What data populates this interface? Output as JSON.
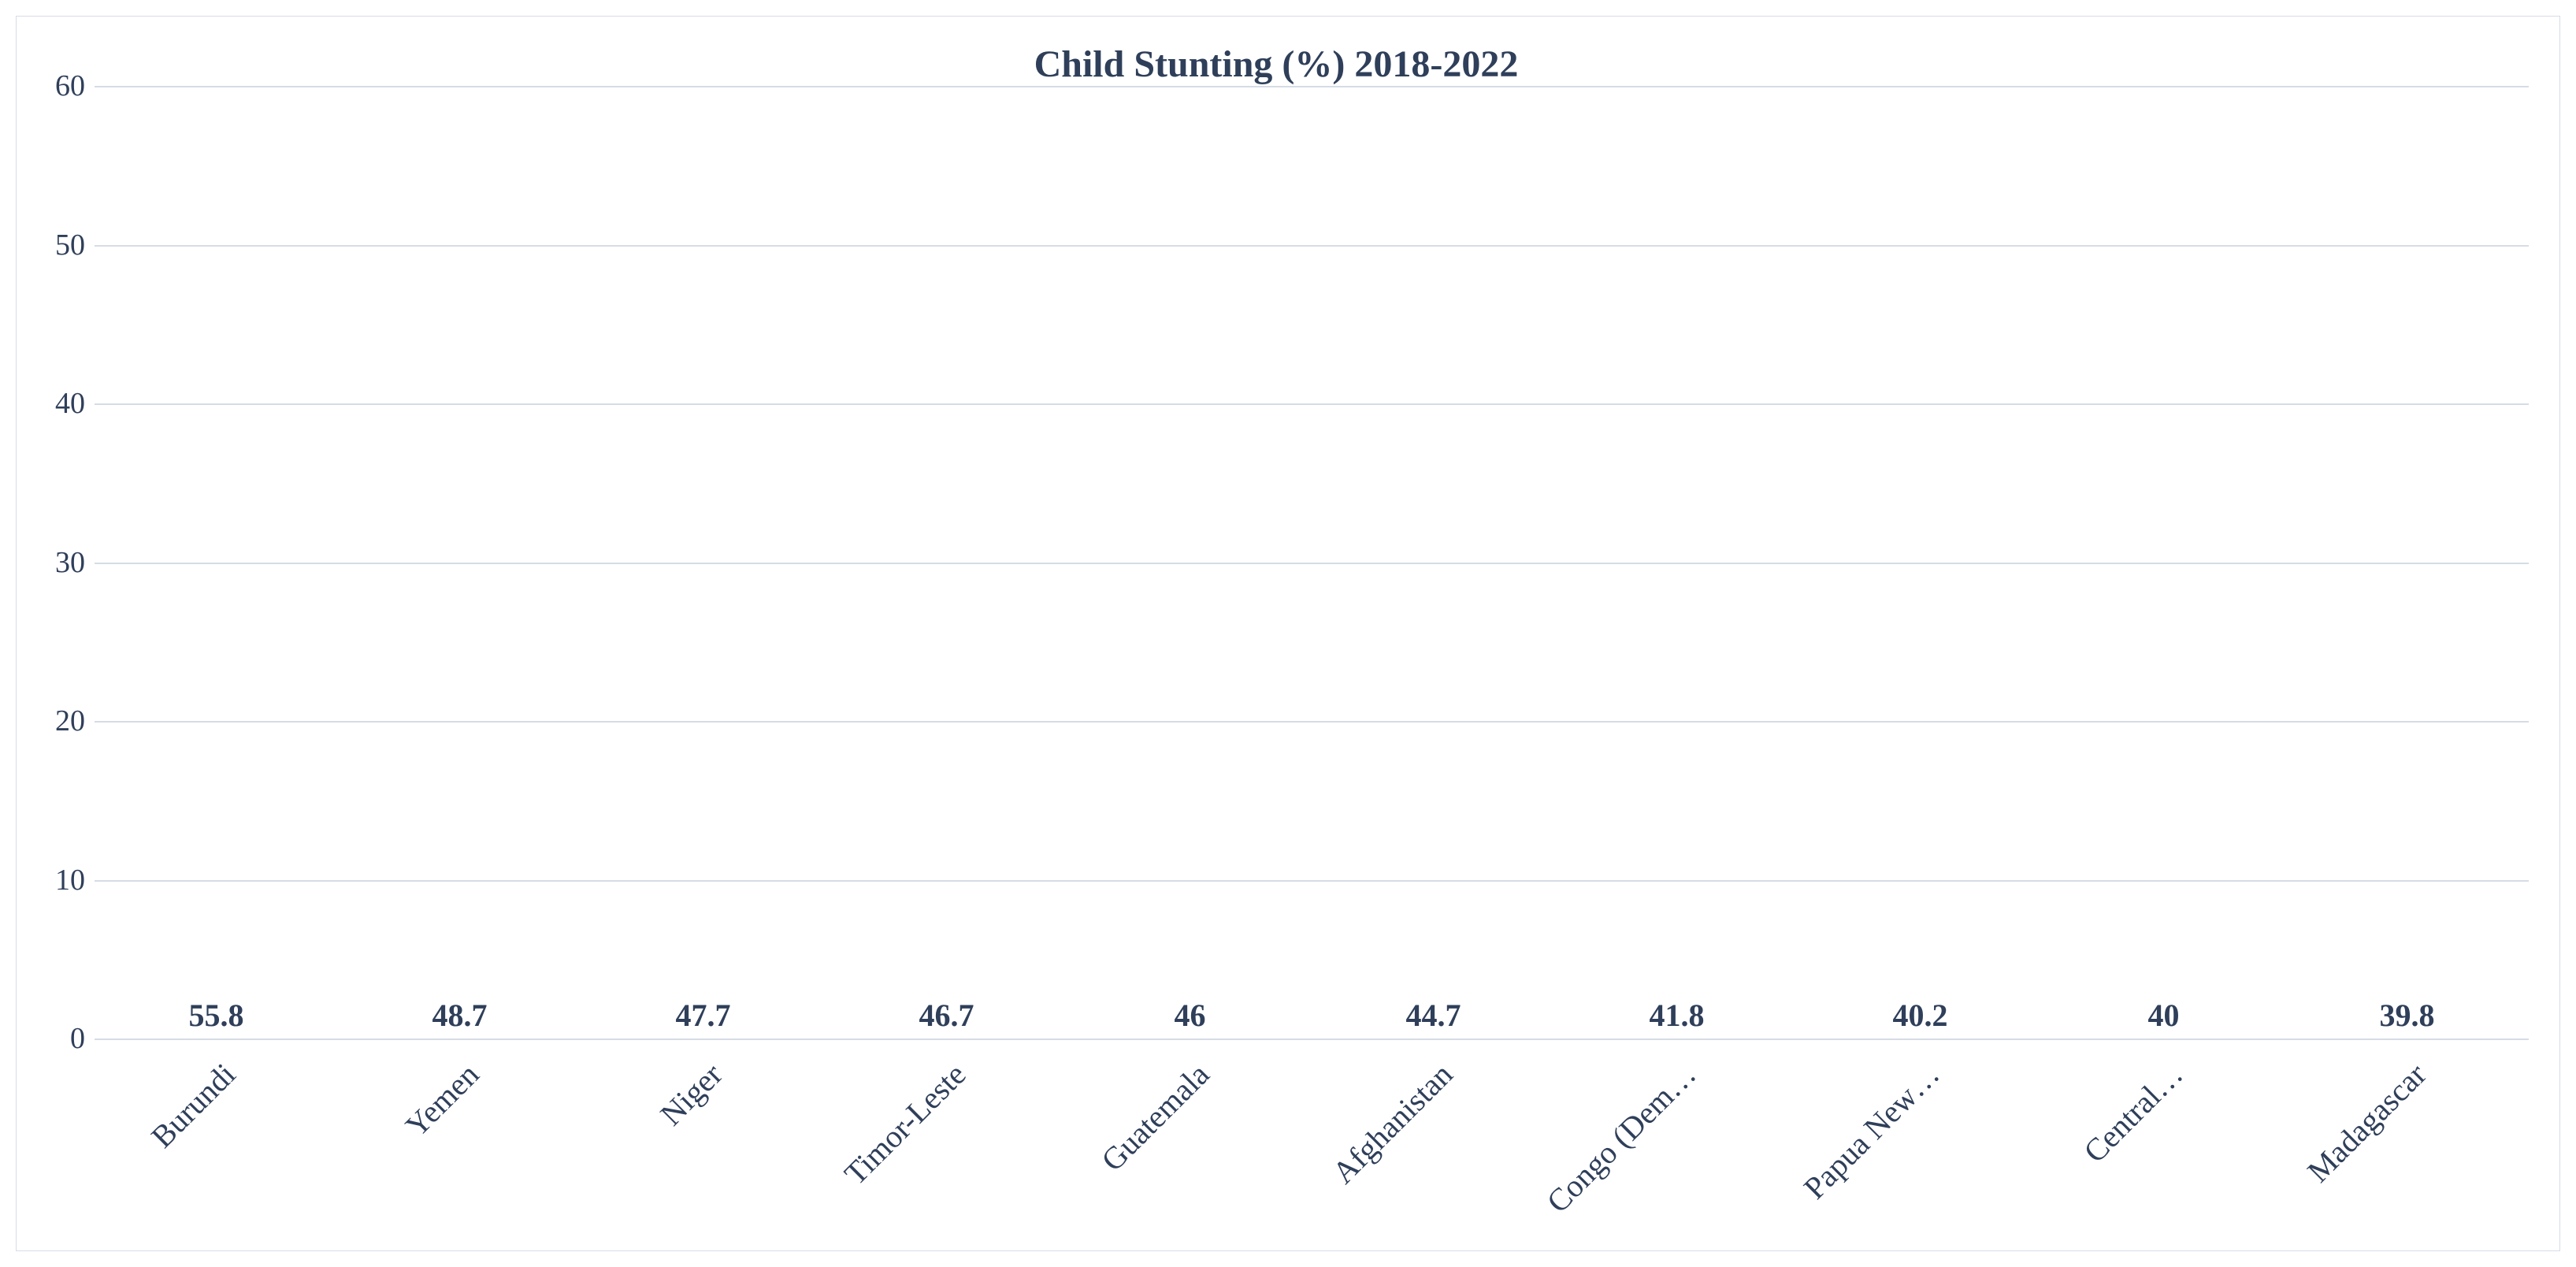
{
  "chart": {
    "type": "bar",
    "title": "Child Stunting (%) 2018-2022",
    "title_fontsize": 48,
    "title_color": "#2f3f5a",
    "categories": [
      "Burundi",
      "Yemen",
      "Niger",
      "Timor-Leste",
      "Guatemala",
      "Afghanistan",
      "Congo (Dem…",
      "Papua New…",
      "Central…",
      "Madagascar"
    ],
    "values": [
      55.8,
      48.7,
      47.7,
      46.7,
      46,
      44.7,
      41.8,
      40.2,
      40,
      39.8
    ],
    "value_labels": [
      "55.8",
      "48.7",
      "47.7",
      "46.7",
      "46",
      "44.7",
      "41.8",
      "40.2",
      "40",
      "39.8"
    ],
    "bar_color": "#be0712",
    "background_color": "#ffffff",
    "border_color": "#d6dce5",
    "grid_color": "#d6dce5",
    "axis_color": "#d6dce5",
    "text_color": "#2f3f5a",
    "ylim": [
      0,
      60
    ],
    "ytick_step": 10,
    "yticks": [
      0,
      10,
      20,
      30,
      40,
      50,
      60
    ],
    "tick_fontsize": 38,
    "value_label_fontsize": 40,
    "category_fontsize": 40,
    "bar_width_ratio": 0.56,
    "x_label_rotation_deg": -45
  }
}
